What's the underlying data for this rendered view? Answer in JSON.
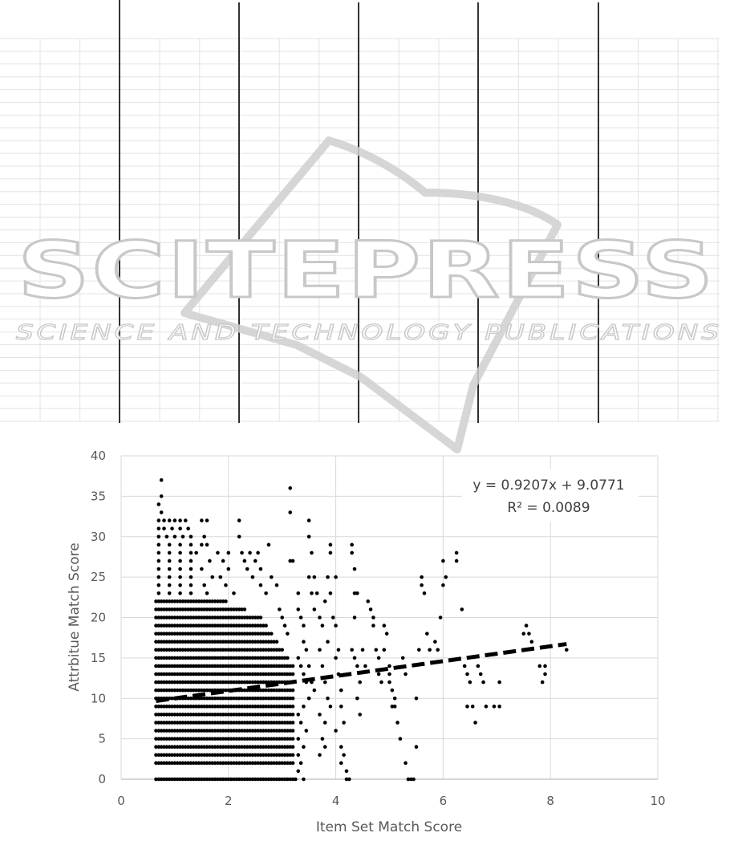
{
  "watermark": {
    "title": "SCITEPRESS",
    "subtitle": "SCIENCE AND TECHNOLOGY PUBLICATIONS"
  },
  "colors": {
    "points": "#000000",
    "trendline": "#000000",
    "gridline": "#d9d9d9",
    "axis_text": "#595959",
    "watermark": "#c8c8c8"
  },
  "chart_data": {
    "type": "scatter",
    "title": "",
    "xlabel": "Item Set Match Score",
    "ylabel": "Attrbitue Match Score",
    "xlim": [
      0,
      10
    ],
    "ylim": [
      0,
      40
    ],
    "xticks": [
      "0",
      "2",
      "4",
      "6",
      "8",
      "10"
    ],
    "yticks": [
      "0",
      "5",
      "10",
      "15",
      "20",
      "25",
      "30",
      "35",
      "40"
    ],
    "grid": true,
    "legend": "none",
    "trendline": {
      "style": "dashed",
      "slope": 0.9207,
      "intercept": 9.0771,
      "x_range": [
        0.65,
        8.3
      ],
      "equation": "y = 0.9207x + 9.0771",
      "r_squared": "R² = 0.0089"
    },
    "dense_columns": {
      "x_start": 0.65,
      "x_end": 3.2,
      "x_step": 0.05,
      "y_values": [
        0,
        2,
        3,
        4,
        5,
        6,
        7,
        8,
        9,
        10,
        11,
        12,
        13,
        14,
        15,
        16,
        17,
        18,
        19,
        20,
        21,
        22
      ],
      "note_y_max_profile": [
        [
          0.65,
          32
        ],
        [
          1.5,
          28
        ],
        [
          2.0,
          22
        ],
        [
          2.6,
          20
        ],
        [
          3.2,
          14
        ]
      ]
    },
    "points": [
      [
        0.75,
        37
      ],
      [
        0.75,
        35
      ],
      [
        0.7,
        34
      ],
      [
        0.75,
        33
      ],
      [
        0.7,
        32
      ],
      [
        0.8,
        32
      ],
      [
        0.9,
        32
      ],
      [
        1.0,
        32
      ],
      [
        1.1,
        32
      ],
      [
        1.2,
        32
      ],
      [
        0.7,
        31
      ],
      [
        0.8,
        31
      ],
      [
        0.95,
        31
      ],
      [
        1.1,
        31
      ],
      [
        1.25,
        31
      ],
      [
        0.7,
        30
      ],
      [
        0.85,
        30
      ],
      [
        1.0,
        30
      ],
      [
        1.15,
        30
      ],
      [
        1.3,
        30
      ],
      [
        0.7,
        29
      ],
      [
        0.9,
        29
      ],
      [
        1.1,
        29
      ],
      [
        1.3,
        29
      ],
      [
        1.5,
        29
      ],
      [
        0.7,
        28
      ],
      [
        0.9,
        28
      ],
      [
        1.1,
        28
      ],
      [
        1.3,
        28
      ],
      [
        1.4,
        28
      ],
      [
        0.7,
        27
      ],
      [
        0.9,
        27
      ],
      [
        1.1,
        27
      ],
      [
        1.3,
        27
      ],
      [
        0.7,
        26
      ],
      [
        0.9,
        26
      ],
      [
        1.1,
        26
      ],
      [
        1.3,
        26
      ],
      [
        0.7,
        25
      ],
      [
        0.9,
        25
      ],
      [
        1.1,
        25
      ],
      [
        1.3,
        25
      ],
      [
        0.7,
        24
      ],
      [
        0.9,
        24
      ],
      [
        1.1,
        24
      ],
      [
        1.3,
        24
      ],
      [
        0.7,
        23
      ],
      [
        0.9,
        23
      ],
      [
        1.1,
        23
      ],
      [
        1.3,
        23
      ],
      [
        1.5,
        32
      ],
      [
        1.6,
        32
      ],
      [
        1.55,
        30
      ],
      [
        1.6,
        29
      ],
      [
        1.65,
        27
      ],
      [
        1.7,
        25
      ],
      [
        1.5,
        26
      ],
      [
        1.55,
        24
      ],
      [
        1.6,
        23
      ],
      [
        1.8,
        28
      ],
      [
        1.9,
        27
      ],
      [
        1.85,
        25
      ],
      [
        1.95,
        24
      ],
      [
        2.0,
        28
      ],
      [
        2.0,
        26
      ],
      [
        2.1,
        23
      ],
      [
        2.2,
        32
      ],
      [
        2.2,
        30
      ],
      [
        2.25,
        28
      ],
      [
        2.3,
        27
      ],
      [
        2.35,
        26
      ],
      [
        2.4,
        28
      ],
      [
        2.45,
        25
      ],
      [
        2.5,
        27
      ],
      [
        2.55,
        28
      ],
      [
        2.6,
        26
      ],
      [
        2.6,
        24
      ],
      [
        2.7,
        23
      ],
      [
        2.75,
        29
      ],
      [
        2.8,
        25
      ],
      [
        2.9,
        24
      ],
      [
        2.95,
        21
      ],
      [
        3.0,
        20
      ],
      [
        3.05,
        19
      ],
      [
        3.1,
        18
      ],
      [
        3.15,
        36
      ],
      [
        3.15,
        33
      ],
      [
        3.15,
        27
      ],
      [
        3.2,
        27
      ],
      [
        3.3,
        23
      ],
      [
        3.3,
        21
      ],
      [
        3.35,
        20
      ],
      [
        3.4,
        19
      ],
      [
        3.4,
        17
      ],
      [
        3.45,
        16
      ],
      [
        3.5,
        32
      ],
      [
        3.5,
        30
      ],
      [
        3.55,
        28
      ],
      [
        3.5,
        25
      ],
      [
        3.55,
        23
      ],
      [
        3.6,
        25
      ],
      [
        3.65,
        23
      ],
      [
        3.6,
        21
      ],
      [
        3.7,
        20
      ],
      [
        3.75,
        19
      ],
      [
        3.3,
        15
      ],
      [
        3.35,
        14
      ],
      [
        3.4,
        13
      ],
      [
        3.45,
        12
      ],
      [
        3.5,
        14
      ],
      [
        3.55,
        12
      ],
      [
        3.6,
        11
      ],
      [
        3.5,
        10
      ],
      [
        3.4,
        9
      ],
      [
        3.3,
        8
      ],
      [
        3.35,
        7
      ],
      [
        3.45,
        6
      ],
      [
        3.3,
        5
      ],
      [
        3.4,
        4
      ],
      [
        3.3,
        3
      ],
      [
        3.35,
        2
      ],
      [
        3.4,
        0
      ],
      [
        3.25,
        0
      ],
      [
        3.3,
        1
      ],
      [
        3.8,
        22
      ],
      [
        3.9,
        29
      ],
      [
        3.9,
        28
      ],
      [
        3.85,
        25
      ],
      [
        3.9,
        23
      ],
      [
        3.95,
        20
      ],
      [
        4.0,
        25
      ],
      [
        4.0,
        19
      ],
      [
        4.05,
        16
      ],
      [
        3.85,
        17
      ],
      [
        3.7,
        16
      ],
      [
        3.75,
        14
      ],
      [
        3.8,
        12
      ],
      [
        3.85,
        10
      ],
      [
        3.9,
        9
      ],
      [
        3.7,
        8
      ],
      [
        3.8,
        7
      ],
      [
        3.75,
        5
      ],
      [
        3.8,
        4
      ],
      [
        3.7,
        3
      ],
      [
        4.0,
        15
      ],
      [
        4.05,
        13
      ],
      [
        4.1,
        11
      ],
      [
        4.1,
        9
      ],
      [
        4.15,
        7
      ],
      [
        4.0,
        6
      ],
      [
        4.1,
        4
      ],
      [
        4.15,
        3
      ],
      [
        4.1,
        2
      ],
      [
        4.2,
        1
      ],
      [
        4.2,
        0
      ],
      [
        4.25,
        0
      ],
      [
        4.3,
        29
      ],
      [
        4.3,
        28
      ],
      [
        4.35,
        26
      ],
      [
        4.35,
        23
      ],
      [
        4.4,
        23
      ],
      [
        4.35,
        20
      ],
      [
        4.3,
        16
      ],
      [
        4.35,
        15
      ],
      [
        4.4,
        14
      ],
      [
        4.45,
        12
      ],
      [
        4.4,
        10
      ],
      [
        4.45,
        8
      ],
      [
        4.5,
        16
      ],
      [
        4.55,
        14
      ],
      [
        4.6,
        22
      ],
      [
        4.65,
        21
      ],
      [
        4.7,
        20
      ],
      [
        4.7,
        19
      ],
      [
        4.75,
        16
      ],
      [
        4.8,
        15
      ],
      [
        4.8,
        13
      ],
      [
        4.85,
        12
      ],
      [
        4.9,
        16
      ],
      [
        4.9,
        19
      ],
      [
        4.95,
        18
      ],
      [
        5.0,
        14
      ],
      [
        5.0,
        13
      ],
      [
        5.0,
        12
      ],
      [
        5.05,
        11
      ],
      [
        5.1,
        10
      ],
      [
        5.1,
        9
      ],
      [
        5.15,
        7
      ],
      [
        5.2,
        5
      ],
      [
        5.05,
        9
      ],
      [
        5.25,
        15
      ],
      [
        5.3,
        13
      ],
      [
        5.3,
        2
      ],
      [
        5.35,
        0
      ],
      [
        5.4,
        0
      ],
      [
        5.45,
        0
      ],
      [
        5.5,
        4
      ],
      [
        5.5,
        10
      ],
      [
        5.55,
        16
      ],
      [
        5.6,
        25
      ],
      [
        5.6,
        24
      ],
      [
        5.65,
        23
      ],
      [
        5.7,
        18
      ],
      [
        5.75,
        16
      ],
      [
        5.85,
        17
      ],
      [
        5.9,
        16
      ],
      [
        5.95,
        20
      ],
      [
        6.0,
        27
      ],
      [
        6.0,
        24
      ],
      [
        6.05,
        25
      ],
      [
        6.25,
        28
      ],
      [
        6.25,
        27
      ],
      [
        6.35,
        21
      ],
      [
        6.4,
        14
      ],
      [
        6.45,
        13
      ],
      [
        6.5,
        12
      ],
      [
        6.55,
        9
      ],
      [
        6.6,
        7
      ],
      [
        6.45,
        9
      ],
      [
        6.65,
        14
      ],
      [
        6.7,
        13
      ],
      [
        6.75,
        12
      ],
      [
        6.8,
        9
      ],
      [
        6.95,
        9
      ],
      [
        7.05,
        12
      ],
      [
        7.05,
        9
      ],
      [
        7.5,
        18
      ],
      [
        7.55,
        19
      ],
      [
        7.6,
        18
      ],
      [
        7.65,
        17
      ],
      [
        7.8,
        14
      ],
      [
        7.85,
        12
      ],
      [
        7.9,
        13
      ],
      [
        7.9,
        14
      ],
      [
        8.3,
        16
      ]
    ]
  }
}
